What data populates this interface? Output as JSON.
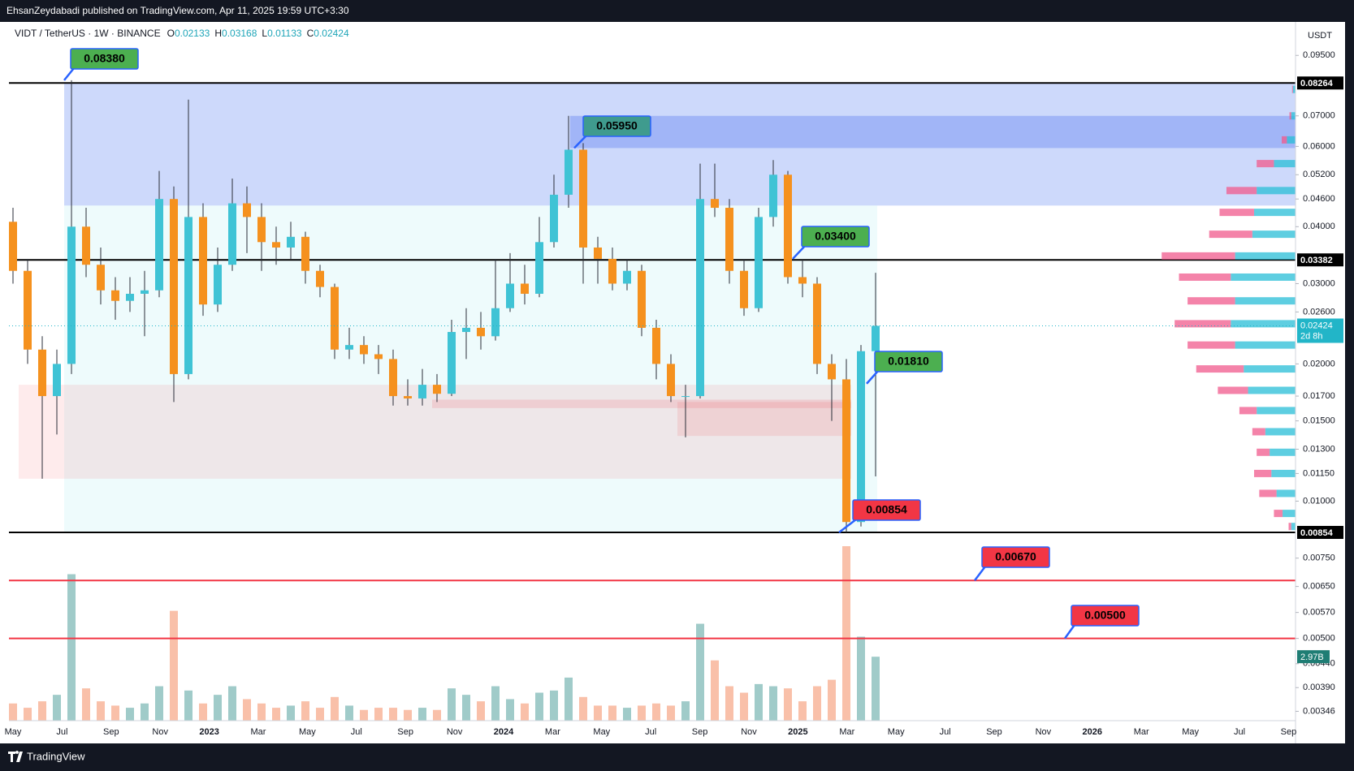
{
  "header": "EhsanZeydabadi published on TradingView.com, Apr 11, 2025 19:59 UTC+3:30",
  "footer_brand": "TradingView",
  "chart_data": {
    "type": "candlestick",
    "title": "VIDT / TetherUS · 1W · BINANCE",
    "ohlc_letters": [
      "O",
      "H",
      "L",
      "C"
    ],
    "currency": "USDT",
    "log_scale": true,
    "grid": false,
    "ylim": [
      0.0033,
      0.1125
    ],
    "yticks": [
      {
        "value": 0.095,
        "label": "0.09500"
      },
      {
        "value": 0.07,
        "label": "0.07000"
      },
      {
        "value": 0.06,
        "label": "0.06000"
      },
      {
        "value": 0.052,
        "label": "0.05200"
      },
      {
        "value": 0.046,
        "label": "0.04600"
      },
      {
        "value": 0.04,
        "label": "0.04000"
      },
      {
        "value": 0.03,
        "label": "0.03000"
      },
      {
        "value": 0.026,
        "label": "0.02600"
      },
      {
        "value": 0.02,
        "label": "0.02000"
      },
      {
        "value": 0.017,
        "label": "0.01700"
      },
      {
        "value": 0.015,
        "label": "0.01500"
      },
      {
        "value": 0.013,
        "label": "0.01300"
      },
      {
        "value": 0.0115,
        "label": "0.01150"
      },
      {
        "value": 0.01,
        "label": "0.01000"
      },
      {
        "value": 0.0075,
        "label": "0.00750"
      },
      {
        "value": 0.0065,
        "label": "0.00650"
      },
      {
        "value": 0.0057,
        "label": "0.00570"
      },
      {
        "value": 0.005,
        "label": "0.00500"
      },
      {
        "value": 0.0044,
        "label": "0.00440"
      },
      {
        "value": 0.0039,
        "label": "0.00390"
      },
      {
        "value": 0.00346,
        "label": "0.00346"
      }
    ],
    "x_labels": [
      "May",
      "Jul",
      "Sep",
      "Nov",
      "2023",
      "Mar",
      "May",
      "Jul",
      "Sep",
      "Nov",
      "2024",
      "Mar",
      "May",
      "Jul",
      "Sep",
      "Nov",
      "2025",
      "Mar",
      "May",
      "Jul",
      "Sep",
      "Nov",
      "2026",
      "Mar",
      "May",
      "Jul",
      "Sep"
    ],
    "up_color": "#3fc3d5",
    "down_color": "#f5911e",
    "open": [
      0.041,
      0.032,
      0.0215,
      0.017,
      0.02,
      0.04,
      0.033,
      0.029,
      0.0275,
      0.0285,
      0.029,
      0.046,
      0.019,
      0.042,
      0.027,
      0.033,
      0.045,
      0.042,
      0.037,
      0.036,
      0.038,
      0.032,
      0.0295,
      0.0215,
      0.022,
      0.021,
      0.0205,
      0.017,
      0.0168,
      0.018,
      0.0172,
      0.0235,
      0.024,
      0.023,
      0.0265,
      0.03,
      0.0285,
      0.037,
      0.047,
      0.059,
      0.036,
      0.034,
      0.03,
      0.032,
      0.024,
      0.02,
      0.017,
      0.017,
      0.046,
      0.044,
      0.032,
      0.0265,
      0.042,
      0.052,
      0.031,
      0.03,
      0.02,
      0.0185,
      0.009,
      0.02133
    ],
    "high": [
      0.044,
      0.034,
      0.023,
      0.0215,
      0.0838,
      0.044,
      0.036,
      0.031,
      0.031,
      0.032,
      0.053,
      0.049,
      0.076,
      0.045,
      0.036,
      0.051,
      0.049,
      0.045,
      0.04,
      0.041,
      0.039,
      0.033,
      0.03,
      0.024,
      0.023,
      0.022,
      0.0215,
      0.0185,
      0.0195,
      0.019,
      0.025,
      0.0265,
      0.026,
      0.034,
      0.035,
      0.033,
      0.042,
      0.052,
      0.07,
      0.061,
      0.038,
      0.036,
      0.034,
      0.033,
      0.025,
      0.021,
      0.018,
      0.055,
      0.055,
      0.046,
      0.034,
      0.044,
      0.056,
      0.053,
      0.034,
      0.031,
      0.021,
      0.0205,
      0.022,
      0.03168
    ],
    "low": [
      0.03,
      0.02,
      0.0112,
      0.014,
      0.019,
      0.031,
      0.027,
      0.025,
      0.026,
      0.023,
      0.028,
      0.0165,
      0.0185,
      0.0255,
      0.026,
      0.032,
      0.035,
      0.032,
      0.033,
      0.034,
      0.03,
      0.028,
      0.0205,
      0.0205,
      0.02,
      0.019,
      0.0162,
      0.0162,
      0.0162,
      0.0165,
      0.017,
      0.0205,
      0.0215,
      0.0225,
      0.026,
      0.027,
      0.028,
      0.036,
      0.044,
      0.03,
      0.03,
      0.029,
      0.029,
      0.023,
      0.0185,
      0.0165,
      0.0138,
      0.0168,
      0.042,
      0.03,
      0.0255,
      0.026,
      0.04,
      0.03,
      0.028,
      0.019,
      0.015,
      0.00854,
      0.0088,
      0.01133
    ],
    "close": [
      0.032,
      0.0215,
      0.017,
      0.02,
      0.04,
      0.033,
      0.029,
      0.0275,
      0.0285,
      0.029,
      0.046,
      0.019,
      0.042,
      0.027,
      0.033,
      0.045,
      0.042,
      0.037,
      0.036,
      0.038,
      0.032,
      0.0295,
      0.0215,
      0.022,
      0.021,
      0.0205,
      0.017,
      0.0168,
      0.018,
      0.0172,
      0.0235,
      0.024,
      0.023,
      0.0265,
      0.03,
      0.0285,
      0.037,
      0.047,
      0.059,
      0.036,
      0.034,
      0.03,
      0.032,
      0.024,
      0.02,
      0.017,
      0.017,
      0.046,
      0.044,
      0.032,
      0.0265,
      0.042,
      0.052,
      0.031,
      0.03,
      0.02,
      0.0185,
      0.009,
      0.02133,
      0.02424
    ],
    "countdown": "2d 8h",
    "volume": {
      "values": [
        0.8,
        0.6,
        0.9,
        1.2,
        6.8,
        1.5,
        0.9,
        0.7,
        0.6,
        0.8,
        1.6,
        5.1,
        1.4,
        0.8,
        1.2,
        1.6,
        1.0,
        0.8,
        0.6,
        0.7,
        0.9,
        0.6,
        1.1,
        0.7,
        0.5,
        0.6,
        0.6,
        0.5,
        0.6,
        0.5,
        1.5,
        1.2,
        0.9,
        1.6,
        1.0,
        0.8,
        1.3,
        1.4,
        2.0,
        1.1,
        0.7,
        0.7,
        0.6,
        0.7,
        0.8,
        0.7,
        0.9,
        4.5,
        2.8,
        1.6,
        1.3,
        1.7,
        1.6,
        1.5,
        0.9,
        1.6,
        1.9,
        8.1,
        3.9,
        2.97
      ],
      "last_label": "2.97B",
      "up_color": "#8fc2c0",
      "down_color": "#f8b59a"
    },
    "zones": [
      {
        "from": 0.0445,
        "to": 0.08264,
        "color": "rgba(74,118,240,0.28)"
      },
      {
        "from": 0.0595,
        "to": 0.07,
        "color": "rgba(60,98,240,0.30)"
      },
      {
        "from": 0.00854,
        "to": 0.0445,
        "color": "rgba(178,235,242,0.22)"
      },
      {
        "from": 0.0112,
        "to": 0.018,
        "color": "rgba(242,54,69,0.10)"
      },
      {
        "from": 0.0139,
        "to": 0.0165,
        "color": "rgba(242,54,69,0.12)"
      },
      {
        "from": 0.016,
        "to": 0.0167,
        "color": "rgba(242,54,69,0.14)"
      }
    ],
    "levels": [
      {
        "value": 0.08264,
        "color": "#000000",
        "tag": true
      },
      {
        "value": 0.03382,
        "color": "#000000",
        "tag": true
      },
      {
        "value": 0.00854,
        "color": "#000000",
        "tag": true
      },
      {
        "value": 0.0067,
        "color": "#f23645",
        "tag": false
      },
      {
        "value": 0.005,
        "color": "#f23645",
        "tag": false
      }
    ],
    "callouts": [
      {
        "value": 0.0838,
        "label": "0.08380",
        "color": "#4caf50"
      },
      {
        "value": 0.0595,
        "label": "0.05950",
        "color": "#3f9b8e"
      },
      {
        "value": 0.034,
        "label": "0.03400",
        "color": "#4caf50"
      },
      {
        "value": 0.0181,
        "label": "0.01810",
        "color": "#4caf50"
      },
      {
        "value": 0.00854,
        "label": "0.00854",
        "color": "#f23645"
      },
      {
        "value": 0.0067,
        "label": "0.00670",
        "color": "#f23645"
      },
      {
        "value": 0.005,
        "label": "0.00500",
        "color": "#f23645"
      }
    ],
    "volume_profile": {
      "prices": [
        0.08,
        0.07,
        0.062,
        0.055,
        0.048,
        0.043,
        0.0385,
        0.0345,
        0.031,
        0.0275,
        0.0245,
        0.022,
        0.0195,
        0.0175,
        0.0158,
        0.0142,
        0.0128,
        0.0115,
        0.0104,
        0.0094,
        0.0088
      ],
      "up": [
        3,
        5,
        10,
        25,
        45,
        48,
        50,
        70,
        75,
        70,
        75,
        70,
        60,
        55,
        45,
        35,
        30,
        28,
        22,
        15,
        5
      ],
      "down": [
        1,
        2,
        6,
        20,
        35,
        40,
        50,
        85,
        60,
        55,
        65,
        55,
        55,
        35,
        20,
        15,
        15,
        20,
        20,
        10,
        3
      ],
      "up_color": "rgba(40,190,215,0.75)",
      "down_color": "rgba(240,90,140,0.75)"
    }
  }
}
